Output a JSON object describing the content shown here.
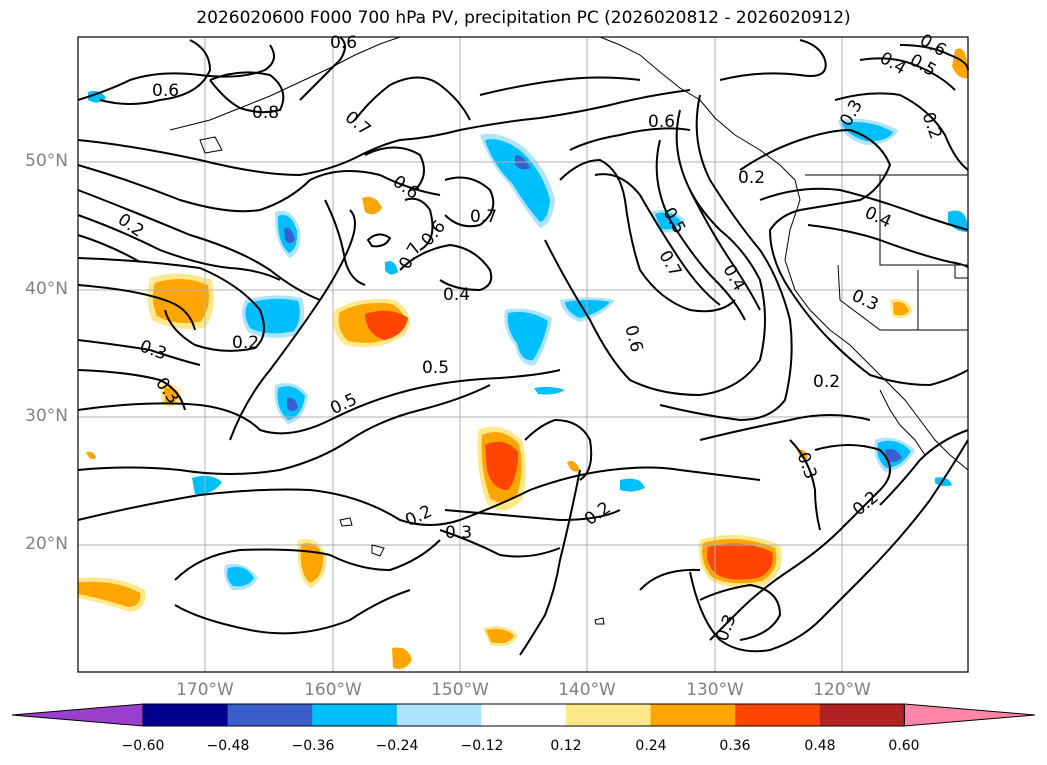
{
  "title": "2026020600 F000 700 hPa PV, precipitation PC (2026020812 - 2026020912)",
  "lat_labels": [
    "50°N",
    "40°N",
    "30°N",
    "20°N"
  ],
  "lon_labels": [
    "170°W",
    "160°W",
    "150°W",
    "140°W",
    "130°W",
    "120°W"
  ],
  "colorbar": {
    "ticks": [
      "−0.60",
      "−0.48",
      "−0.36",
      "−0.24",
      "−0.12",
      "0.12",
      "0.24",
      "0.36",
      "0.48",
      "0.60"
    ],
    "colors": [
      "#9b3fcf",
      "#000090",
      "#3a5fcd",
      "#00bfff",
      "#ade3fb",
      "#ffffff",
      "#ffe88a",
      "#ffa500",
      "#ff4500",
      "#b22222",
      "#ff85a8"
    ]
  },
  "contour_labels": [
    {
      "text": "0.6"
    },
    {
      "text": "0.8"
    },
    {
      "text": "0.7"
    },
    {
      "text": "0.6"
    },
    {
      "text": "0.7"
    },
    {
      "text": "0.6"
    },
    {
      "text": "0.7"
    },
    {
      "text": "0.6"
    },
    {
      "text": "0.4"
    },
    {
      "text": "0.5"
    },
    {
      "text": "0.5"
    },
    {
      "text": "0.2"
    },
    {
      "text": "0.2"
    },
    {
      "text": "0.3"
    },
    {
      "text": "0.3"
    },
    {
      "text": "0.2"
    },
    {
      "text": "0.3"
    },
    {
      "text": "0.6"
    },
    {
      "text": "0.5"
    },
    {
      "text": "0.7"
    },
    {
      "text": "0.6"
    },
    {
      "text": "0.4"
    },
    {
      "text": "0.2"
    },
    {
      "text": "0.4"
    },
    {
      "text": "0.3"
    },
    {
      "text": "0.2"
    },
    {
      "text": "0.2"
    },
    {
      "text": "0.2"
    },
    {
      "text": "0.3"
    },
    {
      "text": "0.3"
    },
    {
      "text": "0.3"
    },
    {
      "text": "0.2"
    },
    {
      "text": "0.4"
    },
    {
      "text": "0.5"
    },
    {
      "text": "0.6"
    }
  ],
  "colors": {
    "contour": "#000000",
    "grid": "#b0b0b0",
    "coast": "#000000",
    "tick_text": "#808080"
  }
}
